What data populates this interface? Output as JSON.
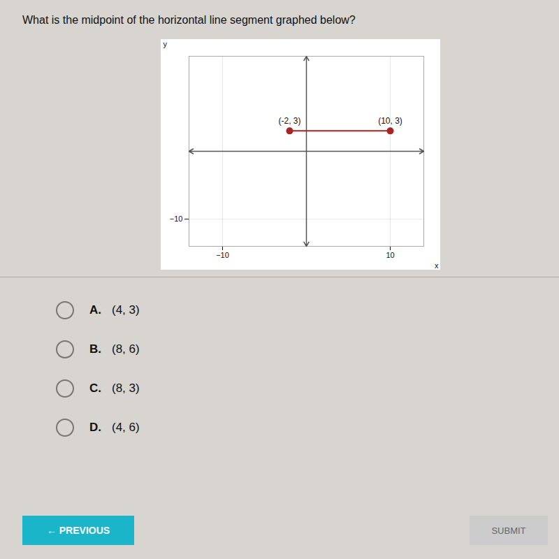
{
  "chart_data": {
    "type": "line",
    "title": "What is the midpoint of the horizontal line segment graphed below?",
    "x": [
      -2,
      10
    ],
    "values": [
      3,
      3
    ],
    "color": "#aa2222",
    "marker": "circle",
    "x_label": "x",
    "y_label": "y",
    "xlim": [
      -14,
      14
    ],
    "ylim": [
      -14,
      14
    ],
    "xticks": [
      -10,
      10
    ],
    "yticks": [
      -10
    ],
    "grid": true,
    "annotations": [
      {
        "text": "(-2, 3)",
        "x": -2,
        "y": 3
      },
      {
        "text": "(10, 3)",
        "x": 10,
        "y": 3
      }
    ]
  },
  "choices": [
    {
      "letter": "A.",
      "text": "(4, 3)"
    },
    {
      "letter": "B.",
      "text": "(8, 6)"
    },
    {
      "letter": "C.",
      "text": "(8, 3)"
    },
    {
      "letter": "D.",
      "text": "(4, 6)"
    }
  ],
  "buttons": [
    {
      "text": "← PREVIOUS",
      "color": "#1ab5c8"
    },
    {
      "text": "SUBMIT",
      "color": "#cccccc"
    }
  ]
}
